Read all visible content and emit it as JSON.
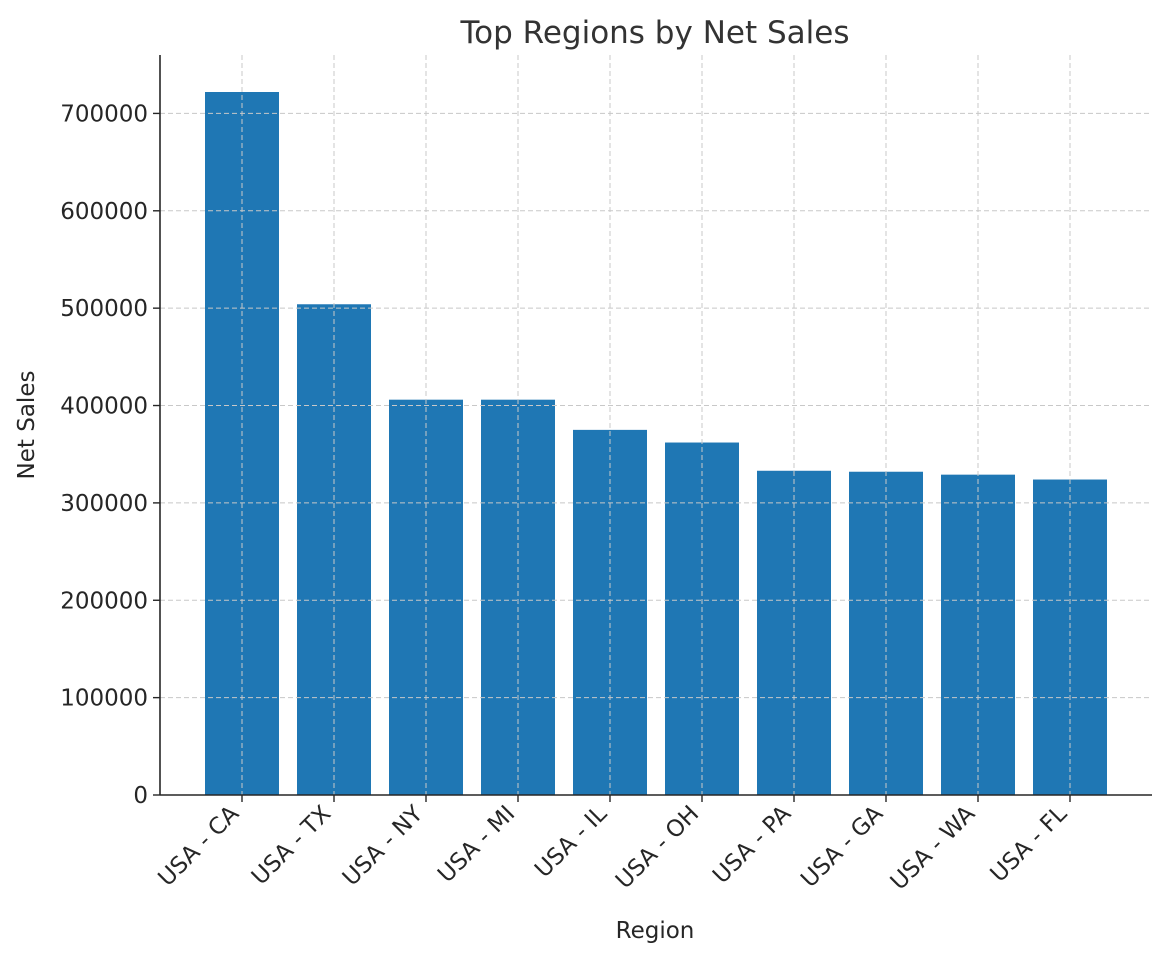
{
  "chart_data": {
    "type": "bar",
    "title": "Top Regions by Net Sales",
    "xlabel": "Region",
    "ylabel": "Net Sales",
    "categories": [
      "USA - CA",
      "USA - TX",
      "USA - NY",
      "USA - MI",
      "USA - IL",
      "USA - OH",
      "USA - PA",
      "USA - GA",
      "USA - WA",
      "USA - FL"
    ],
    "values": [
      722000,
      504000,
      406000,
      406000,
      375000,
      362000,
      333000,
      332000,
      329000,
      324000
    ],
    "ylim": [
      0,
      760000
    ],
    "yticks": [
      0,
      100000,
      200000,
      300000,
      400000,
      500000,
      600000,
      700000
    ],
    "ytick_labels": [
      "0",
      "100000",
      "200000",
      "300000",
      "400000",
      "500000",
      "600000",
      "700000"
    ],
    "grid": true,
    "bar_color": "#1f77b4",
    "grid_color": "#c8c8c8"
  }
}
